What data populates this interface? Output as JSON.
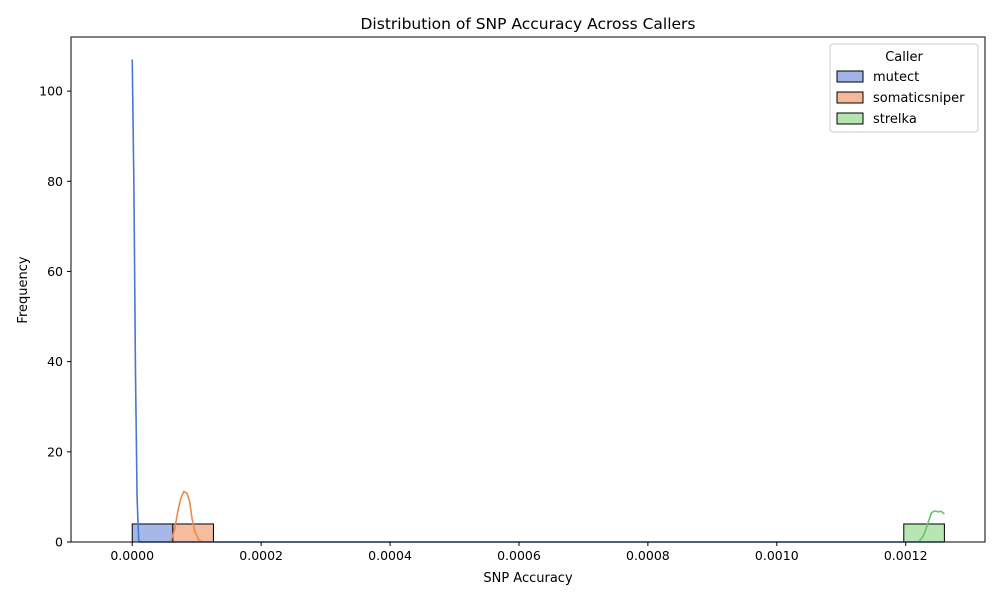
{
  "chart_data": {
    "type": "histogram",
    "title": "Distribution of SNP Accuracy Across Callers",
    "xlabel": "SNP Accuracy",
    "ylabel": "Frequency",
    "xlim": [
      -9.5e-05,
      0.001323
    ],
    "ylim": [
      0,
      112
    ],
    "xticks": [
      0.0,
      0.0002,
      0.0004,
      0.0006,
      0.0008,
      0.001,
      0.0012
    ],
    "xtick_labels": [
      "0.0000",
      "0.0002",
      "0.0004",
      "0.0006",
      "0.0008",
      "0.0010",
      "0.0012"
    ],
    "yticks": [
      0,
      20,
      40,
      60,
      80,
      100
    ],
    "ytick_labels": [
      "0",
      "20",
      "40",
      "60",
      "80",
      "100"
    ],
    "grid": false,
    "legend": {
      "title": "Caller",
      "placement": "upper right"
    },
    "bin_edges": [
      0.0,
      6.3e-05,
      0.000126,
      0.000189,
      0.000252,
      0.000315,
      0.000378,
      0.000441,
      0.000504,
      0.000567,
      0.00063,
      0.000693,
      0.000756,
      0.000819,
      0.000882,
      0.000945,
      0.001008,
      0.001071,
      0.001134,
      0.001197,
      0.00126
    ],
    "series": [
      {
        "name": "mutect",
        "fill": "#a1b4e6",
        "line": "#4878cf",
        "counts": [
          4,
          0,
          0,
          0,
          0,
          0,
          0,
          0,
          0,
          0,
          0,
          0,
          0,
          0,
          0,
          0,
          0,
          0,
          0,
          0
        ],
        "kde": [
          [
            0.0,
            107
          ],
          [
            2.5e-06,
            80
          ],
          [
            5e-06,
            38
          ],
          [
            7.5e-06,
            10
          ],
          [
            1e-05,
            0.5
          ],
          [
            1.2e-05,
            0
          ],
          [
            0.00126,
            0
          ]
        ]
      },
      {
        "name": "somaticsniper",
        "fill": "#f4b89b",
        "line": "#ea8a4e",
        "counts": [
          0,
          4,
          0,
          0,
          0,
          0,
          0,
          0,
          0,
          0,
          0,
          0,
          0,
          0,
          0,
          0,
          0,
          0,
          0,
          0
        ],
        "kde": [
          [
            6e-05,
            0
          ],
          [
            6.6e-05,
            3
          ],
          [
            7.1e-05,
            7
          ],
          [
            7.5e-05,
            9.5
          ],
          [
            8e-05,
            11.2
          ],
          [
            8.5e-05,
            10.8
          ],
          [
            8.9e-05,
            9
          ],
          [
            9.3e-05,
            5
          ],
          [
            9.8e-05,
            2
          ],
          [
            0.000104,
            0.3
          ],
          [
            0.000112,
            0
          ]
        ]
      },
      {
        "name": "strelka",
        "fill": "#b4e4b0",
        "line": "#6cc36a",
        "counts": [
          0,
          0,
          0,
          0,
          0,
          0,
          0,
          0,
          0,
          0,
          0,
          0,
          0,
          0,
          0,
          0,
          0,
          0,
          0,
          4
        ],
        "kde": [
          [
            0.00122,
            0
          ],
          [
            0.001228,
            1.5
          ],
          [
            0.001234,
            4
          ],
          [
            0.00124,
            6.5
          ],
          [
            0.001245,
            6.9
          ],
          [
            0.00125,
            6.7
          ],
          [
            0.001255,
            6.8
          ],
          [
            0.00126,
            6.2
          ]
        ]
      }
    ]
  }
}
